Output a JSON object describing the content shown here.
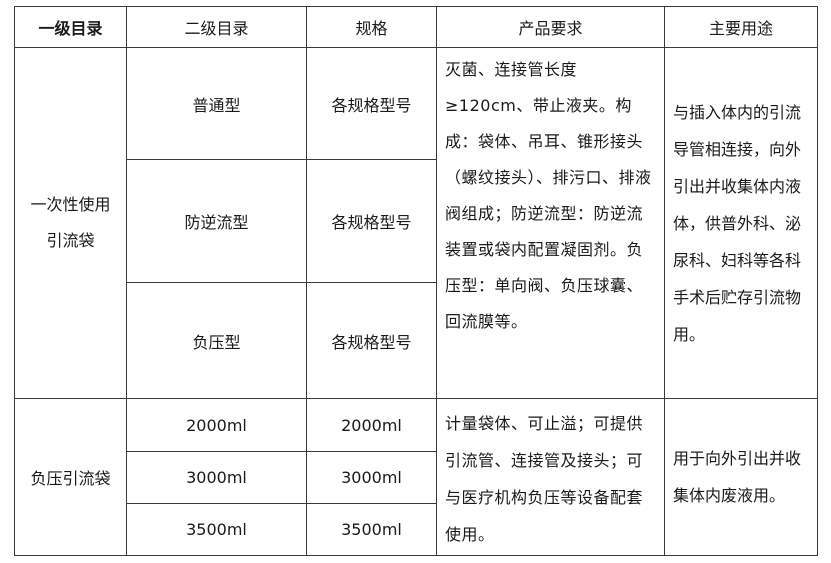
{
  "headers": [
    "一级目录",
    "二级目录",
    "规格",
    "产品要求",
    "主要用途"
  ],
  "groups": [
    {
      "category": "一次性使用引流袋",
      "rows": [
        {
          "sub": "普通型",
          "spec": "各规格型号"
        },
        {
          "sub": "防逆流型",
          "spec": "各规格型号"
        },
        {
          "sub": "负压型",
          "spec": "各规格型号"
        }
      ],
      "requirement": "灭菌、连接管长度≥120cm、带止液夹。构成：袋体、吊耳、锥形接头（螺纹接头）、排污口、排液阀组成；防逆流型：防逆流装置或袋内配置凝固剂。负压型：单向阀、负压球囊、回流膜等。",
      "usage": "与插入体内的引流导管相连接，向外引出并收集体内液体，供普外科、泌尿科、妇科等各科手术后贮存引流物用。"
    },
    {
      "category": "负压引流袋",
      "rows": [
        {
          "sub": "2000ml",
          "spec": "2000ml"
        },
        {
          "sub": "3000ml",
          "spec": "3000ml"
        },
        {
          "sub": "3500ml",
          "spec": "3500ml"
        }
      ],
      "requirement": "计量袋体、可止溢；可提供引流管、连接管及接头；可与医疗机构负压等设备配套使用。",
      "usage": "用于向外引出并收集体内废液用。"
    }
  ]
}
